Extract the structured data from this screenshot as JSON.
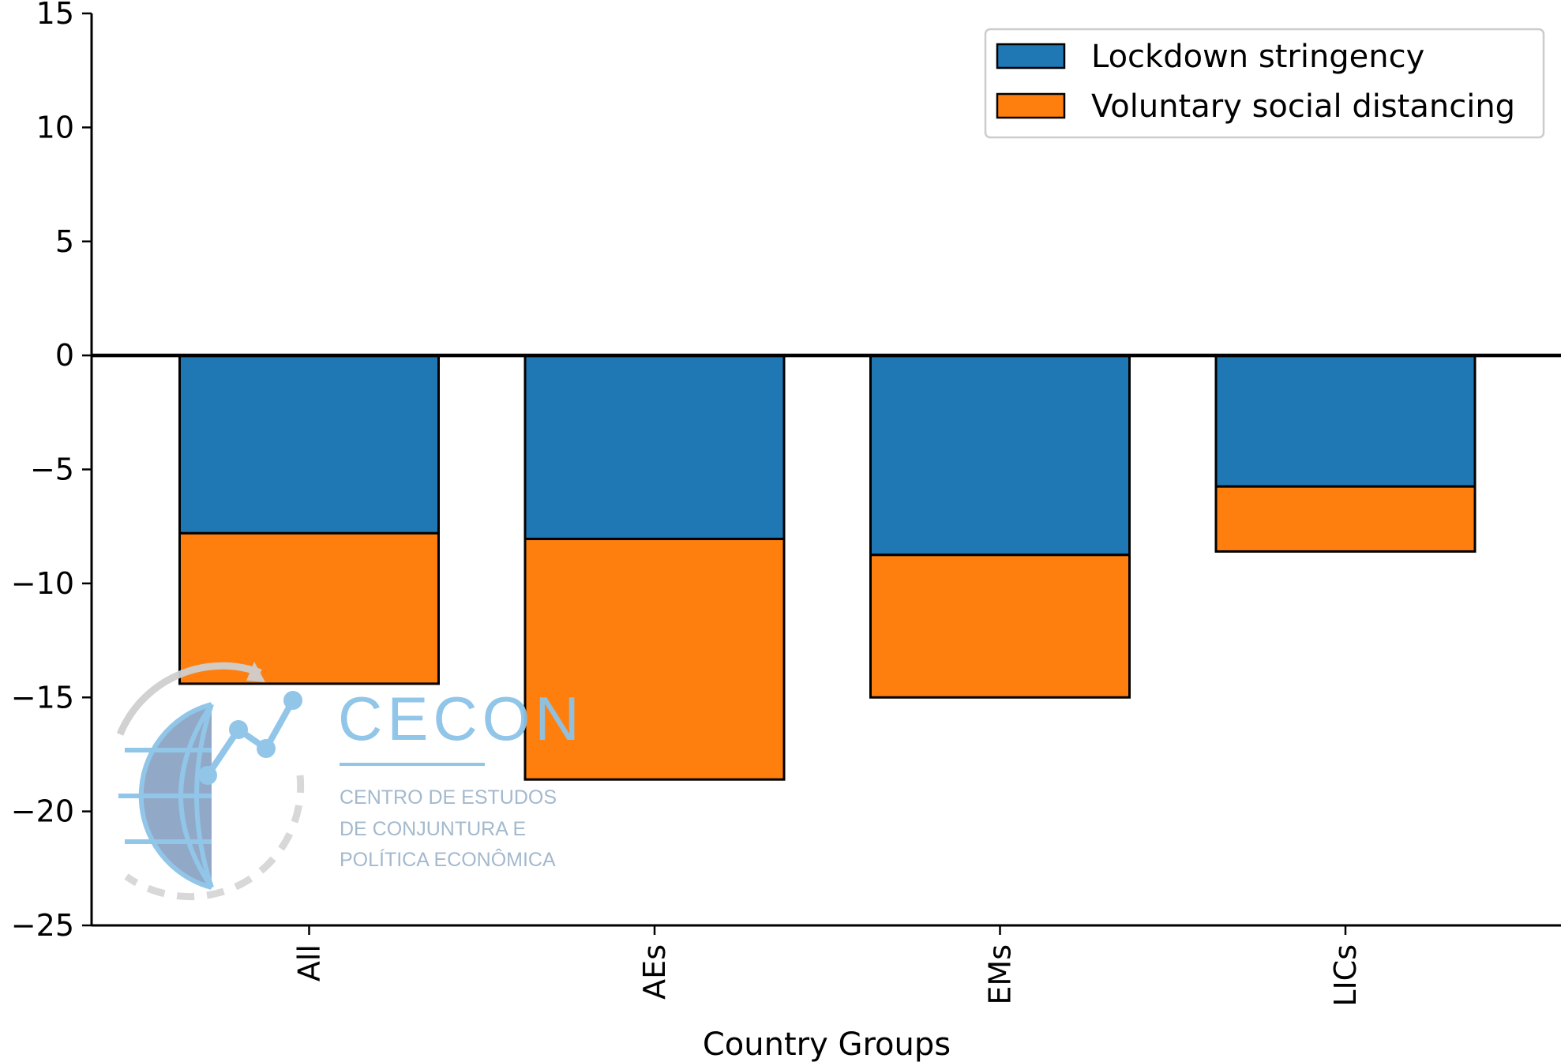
{
  "chart_data": {
    "type": "bar",
    "stacked": true,
    "categories": [
      "All",
      "AEs",
      "EMs",
      "LICs"
    ],
    "series": [
      {
        "name": "Lockdown stringency",
        "color": "#1f77b4",
        "values": [
          -7.8,
          -8.05,
          -8.75,
          -5.75
        ]
      },
      {
        "name": "Voluntary social distancing",
        "color": "#ff7f0e",
        "values": [
          -6.6,
          -10.55,
          -6.25,
          -2.85
        ]
      }
    ],
    "xlabel": "Country Groups",
    "ylabel": "",
    "ylim": [
      -25,
      15
    ],
    "yticks": [
      15,
      10,
      5,
      0,
      -5,
      -10,
      -15,
      -20,
      -25
    ],
    "ytick_labels": [
      "15",
      "10",
      "5",
      "0",
      "−5",
      "−10",
      "−15",
      "−20",
      "−25"
    ],
    "legend_position": "top-right",
    "grid": false
  },
  "watermark": {
    "title": "CECON",
    "lines": [
      "CENTRO DE ESTUDOS",
      "DE CONJUNTURA E",
      "POLÍTICA ECONÔMICA"
    ],
    "icon": "globe-chart-icon"
  }
}
